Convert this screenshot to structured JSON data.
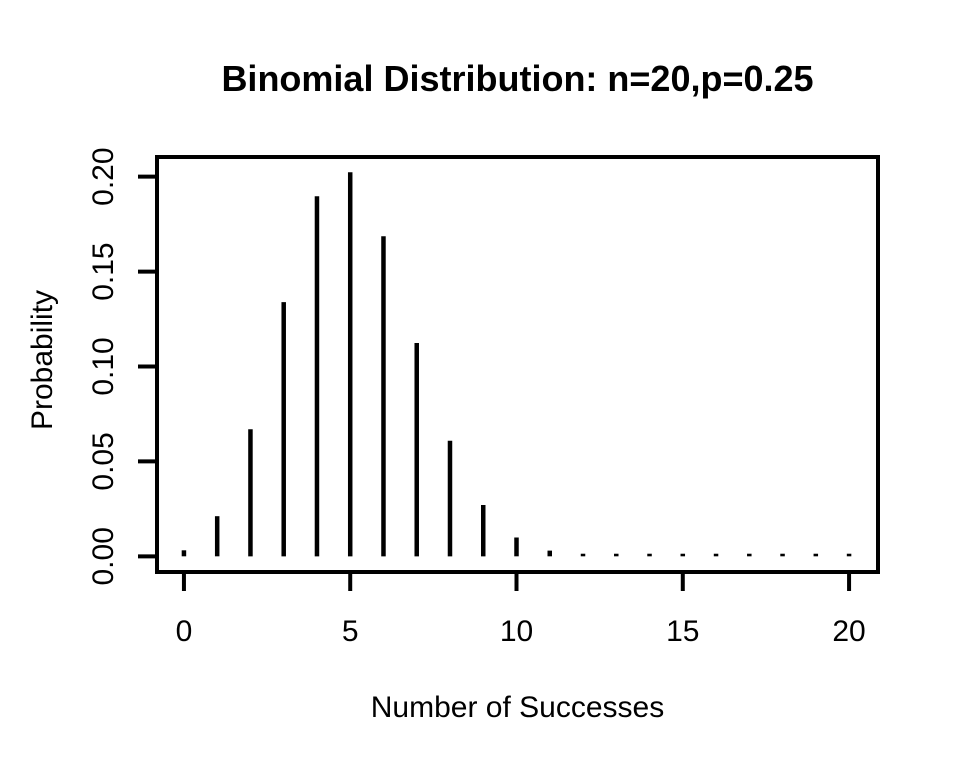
{
  "figure": {
    "background_color": "#ffffff",
    "foreground_color": "#000000"
  },
  "chart_data": {
    "type": "bar",
    "variant": "vertical-probability-spikes (R plot type='h')",
    "title": "Binomial Distribution: n=20,p=0.25",
    "xlabel": "Number of Successes",
    "ylabel": "Probability",
    "x": [
      0,
      1,
      2,
      3,
      4,
      5,
      6,
      7,
      8,
      9,
      10,
      11,
      12,
      13,
      14,
      15,
      16,
      17,
      18,
      19,
      20
    ],
    "values": [
      0.0031712,
      0.0211414,
      0.0669478,
      0.1338956,
      0.1896855,
      0.2023312,
      0.1686093,
      0.1124062,
      0.0608867,
      0.0270608,
      0.0099223,
      0.0030067,
      0.0007517,
      0.0001542,
      2.57e-05,
      3.4e-06,
      4e-07,
      2.8e-08,
      1.5e-09,
      5e-11,
      9e-13
    ],
    "xticks": {
      "values": [
        0,
        5,
        10,
        15,
        20
      ],
      "labels": [
        "0",
        "5",
        "10",
        "15",
        "20"
      ]
    },
    "yticks": {
      "values": [
        0,
        0.05,
        0.1,
        0.15,
        0.2
      ],
      "labels": [
        "0.00",
        "0.05",
        "0.10",
        "0.15",
        "0.20"
      ]
    },
    "xlim": [
      -0.81,
      20.87
    ],
    "ylim": [
      -0.00826,
      0.21036
    ],
    "grid": false,
    "legend": null,
    "spike_color": "#000000",
    "axis_color": "#000000"
  }
}
